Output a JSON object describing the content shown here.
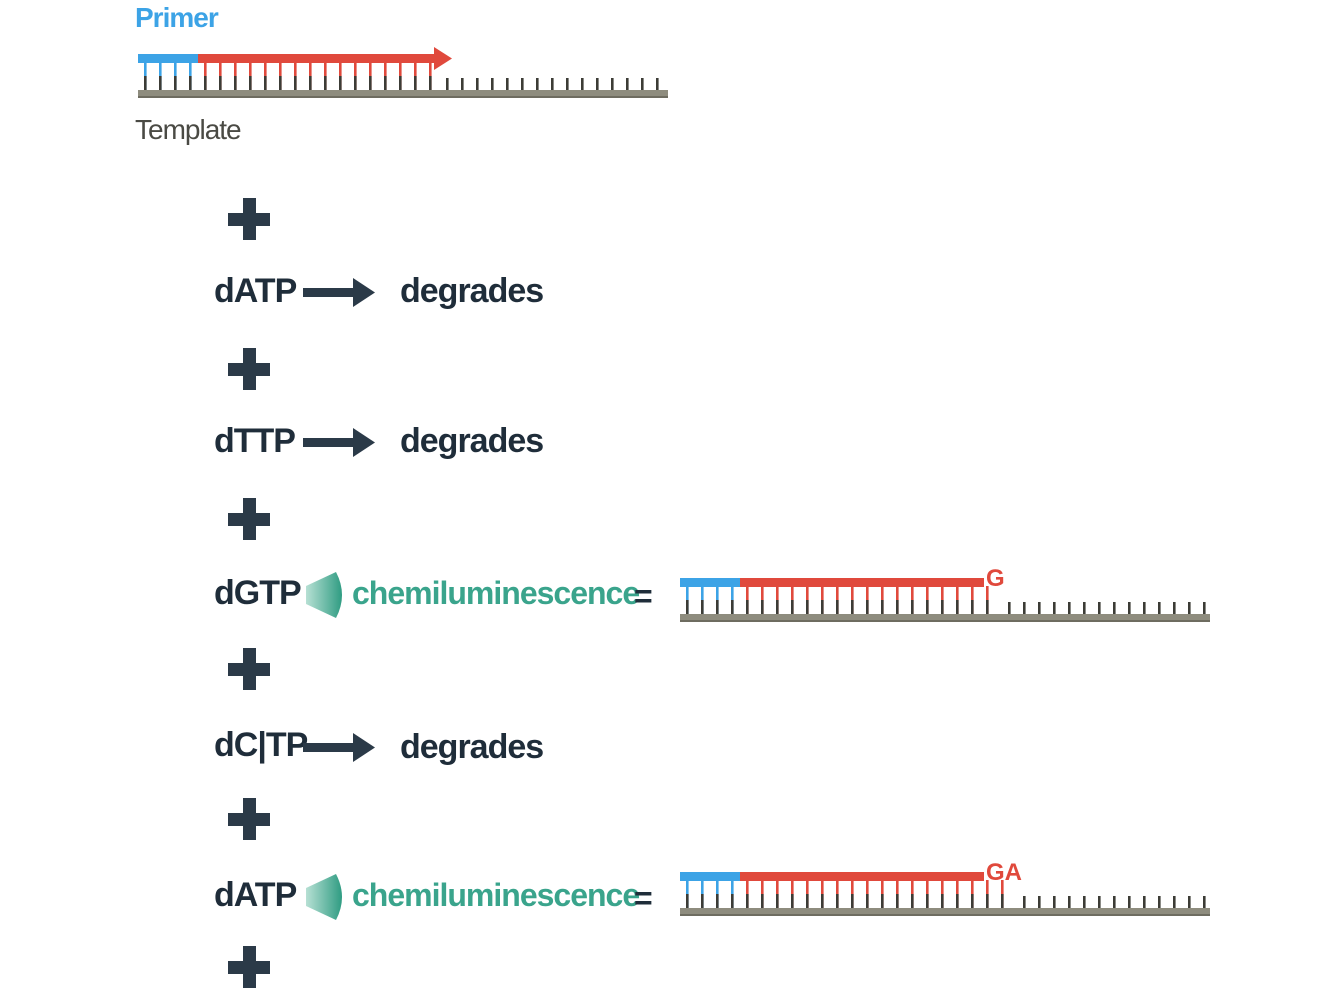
{
  "labels": {
    "primer": "Primer",
    "template": "Template"
  },
  "steps": [
    {
      "nucleotide": "dATP",
      "outcome": "arrow",
      "result": "degrades"
    },
    {
      "nucleotide": "dTTP",
      "outcome": "arrow",
      "result": "degrades"
    },
    {
      "nucleotide": "dGTP",
      "outcome": "light",
      "result": "chemiluminescence",
      "equals": "=",
      "added_bases": "G"
    },
    {
      "nucleotide": "dC|TP",
      "outcome": "arrow",
      "result": "degrades"
    },
    {
      "nucleotide": "dATP",
      "outcome": "light",
      "result": "chemiluminescence",
      "equals": "=",
      "added_bases": "GA"
    }
  ],
  "colors": {
    "primer": "#3ca3e6",
    "extension": "#e0493c",
    "template": "#8e8c7e",
    "text_dark": "#1f2d3a",
    "plus": "#2b3a48",
    "chemiluminescence": "#3aa48c",
    "base_label": "#e0493c"
  }
}
